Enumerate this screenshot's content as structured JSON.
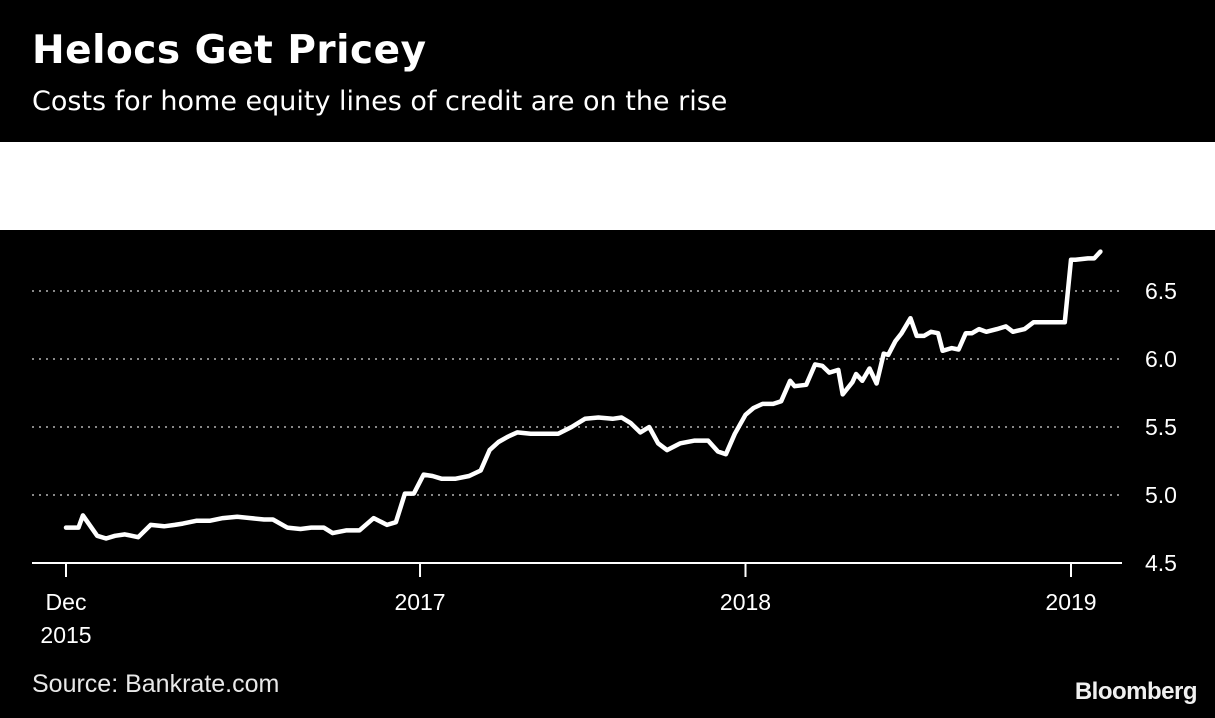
{
  "header": {
    "title": "Helocs Get Pricey",
    "subtitle": "Costs for home equity lines of credit are on the rise"
  },
  "footer": {
    "source": "Source: Bankrate.com",
    "logo": "Bloomberg"
  },
  "colors": {
    "background": "#000000",
    "band": "#ffffff",
    "line": "#ffffff",
    "grid": "#888888"
  },
  "chart_data": {
    "type": "line",
    "title": "Helocs Get Pricey",
    "subtitle": "Costs for home equity lines of credit are on the rise",
    "xlabel": "",
    "ylabel": "",
    "ylim": [
      4.5,
      6.85
    ],
    "y_ticks": [
      4.5,
      5.0,
      5.5,
      6.0,
      6.5
    ],
    "y_tick_labels": [
      "4.5",
      "5.0",
      "5.5",
      "6.0",
      "6.5"
    ],
    "y_axis_side": "right",
    "grid": "horizontal dotted",
    "x_range": [
      "2015-12-01",
      "2019-02-15"
    ],
    "x_ticks": [
      {
        "date": "2015-12-01",
        "label": [
          "Dec",
          "2015"
        ]
      },
      {
        "date": "2017-01-01",
        "label": [
          "2017"
        ]
      },
      {
        "date": "2018-01-01",
        "label": [
          "2018"
        ]
      },
      {
        "date": "2019-01-01",
        "label": [
          "2019"
        ]
      }
    ],
    "series": [
      {
        "x": [
          "2015-12-01",
          "2015-12-15",
          "2015-12-20",
          "2016-01-05",
          "2016-01-15",
          "2016-01-25",
          "2016-02-05",
          "2016-02-20",
          "2016-03-05",
          "2016-03-20",
          "2016-04-01",
          "2016-04-10",
          "2016-04-25",
          "2016-05-10",
          "2016-05-25",
          "2016-06-10",
          "2016-06-25",
          "2016-07-10",
          "2016-07-20",
          "2016-08-05",
          "2016-08-20",
          "2016-09-01",
          "2016-09-15",
          "2016-09-25",
          "2016-10-10",
          "2016-10-25",
          "2016-11-10",
          "2016-11-25",
          "2016-12-05",
          "2016-12-15",
          "2016-12-25",
          "2017-01-05",
          "2017-01-15",
          "2017-01-25",
          "2017-02-10",
          "2017-02-25",
          "2017-03-10",
          "2017-03-20",
          "2017-03-30",
          "2017-04-10",
          "2017-04-20",
          "2017-05-05",
          "2017-05-20",
          "2017-06-05",
          "2017-06-20",
          "2017-07-05",
          "2017-07-20",
          "2017-08-05",
          "2017-08-15",
          "2017-08-25",
          "2017-09-05",
          "2017-09-15",
          "2017-09-25",
          "2017-10-05",
          "2017-10-20",
          "2017-11-05",
          "2017-11-20",
          "2017-12-01",
          "2017-12-10",
          "2017-12-20",
          "2018-01-01",
          "2018-01-10",
          "2018-01-20",
          "2018-02-01",
          "2018-02-10",
          "2018-02-20",
          "2018-02-25",
          "2018-03-10",
          "2018-03-20",
          "2018-03-28",
          "2018-04-05",
          "2018-04-15",
          "2018-04-20",
          "2018-05-01",
          "2018-05-05",
          "2018-05-12",
          "2018-05-20",
          "2018-05-28",
          "2018-06-05",
          "2018-06-10",
          "2018-06-18",
          "2018-06-25",
          "2018-07-05",
          "2018-07-12",
          "2018-07-20",
          "2018-07-28",
          "2018-08-05",
          "2018-08-10",
          "2018-08-20",
          "2018-08-28",
          "2018-09-05",
          "2018-09-12",
          "2018-09-20",
          "2018-09-28",
          "2018-10-10",
          "2018-10-20",
          "2018-10-28",
          "2018-11-10",
          "2018-11-20",
          "2018-12-01",
          "2018-12-10",
          "2018-12-25",
          "2019-01-01",
          "2019-01-06",
          "2019-01-20",
          "2019-01-27",
          "2019-02-03"
        ],
        "values": [
          4.76,
          4.76,
          4.85,
          4.7,
          4.68,
          4.7,
          4.71,
          4.69,
          4.78,
          4.77,
          4.78,
          4.79,
          4.81,
          4.81,
          4.83,
          4.84,
          4.83,
          4.82,
          4.82,
          4.76,
          4.75,
          4.76,
          4.76,
          4.72,
          4.74,
          4.74,
          4.83,
          4.78,
          4.8,
          5.01,
          5.01,
          5.15,
          5.14,
          5.12,
          5.12,
          5.14,
          5.18,
          5.33,
          5.39,
          5.43,
          5.46,
          5.45,
          5.45,
          5.45,
          5.5,
          5.56,
          5.57,
          5.56,
          5.57,
          5.53,
          5.46,
          5.5,
          5.38,
          5.33,
          5.38,
          5.4,
          5.4,
          5.32,
          5.3,
          5.45,
          5.59,
          5.64,
          5.67,
          5.67,
          5.69,
          5.84,
          5.8,
          5.81,
          5.96,
          5.95,
          5.9,
          5.92,
          5.74,
          5.83,
          5.89,
          5.84,
          5.93,
          5.82,
          6.04,
          6.03,
          6.13,
          6.19,
          6.3,
          6.17,
          6.17,
          6.2,
          6.19,
          6.06,
          6.08,
          6.07,
          6.19,
          6.19,
          6.22,
          6.2,
          6.22,
          6.24,
          6.2,
          6.22,
          6.27,
          6.27,
          6.27,
          6.27,
          6.73,
          6.73,
          6.74,
          6.74,
          6.79
        ]
      }
    ]
  }
}
